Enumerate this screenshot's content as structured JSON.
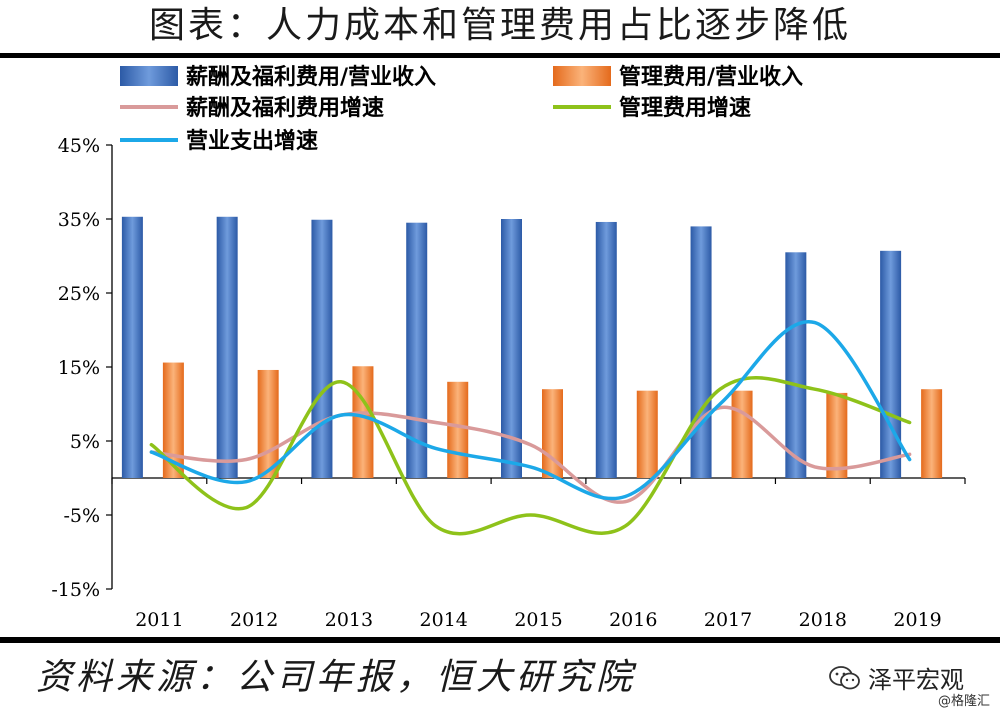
{
  "title": "图表：人力成本和管理费用占比逐步降低",
  "source": "资料来源：公司年报，恒大研究院",
  "brand": "泽平宏观",
  "watermark": "@格隆汇",
  "chart_data": {
    "type": "bar",
    "categories": [
      "2011",
      "2012",
      "2013",
      "2014",
      "2015",
      "2016",
      "2017",
      "2018",
      "2019"
    ],
    "ylim": [
      -15,
      45
    ],
    "yticks": [
      45,
      35,
      25,
      15,
      5,
      -5,
      -15
    ],
    "ytick_labels": [
      "45%",
      "35%",
      "25%",
      "15%",
      "5%",
      "-5%",
      "-15%"
    ],
    "legend_position": "top",
    "grid": false,
    "bar_series": [
      {
        "name": "薪酬及福利费用/营业收入",
        "color": "#3a6fbf",
        "values": [
          35.3,
          35.3,
          34.9,
          34.5,
          35.0,
          34.6,
          34.0,
          30.5,
          30.7
        ]
      },
      {
        "name": "管理费用/营业收入",
        "color": "#f07c2c",
        "values": [
          15.6,
          14.6,
          15.1,
          13.0,
          12.0,
          11.8,
          11.8,
          11.5,
          12.0
        ]
      }
    ],
    "line_series": [
      {
        "name": "薪酬及福利费用增速",
        "color": "#d99a9a",
        "values": [
          3.5,
          2.5,
          8.5,
          7.5,
          4.5,
          -3.2,
          9.5,
          1.5,
          3.2
        ]
      },
      {
        "name": "管理费用增速",
        "color": "#8ec21a",
        "values": [
          4.5,
          -4.0,
          13.0,
          -6.5,
          -5.0,
          -6.5,
          12.0,
          12.0,
          7.5
        ]
      },
      {
        "name": "营业支出增速",
        "color": "#1ca8e8",
        "values": [
          3.5,
          -0.5,
          8.5,
          4.0,
          1.5,
          -2.5,
          10.0,
          21.0,
          2.5
        ]
      }
    ]
  }
}
